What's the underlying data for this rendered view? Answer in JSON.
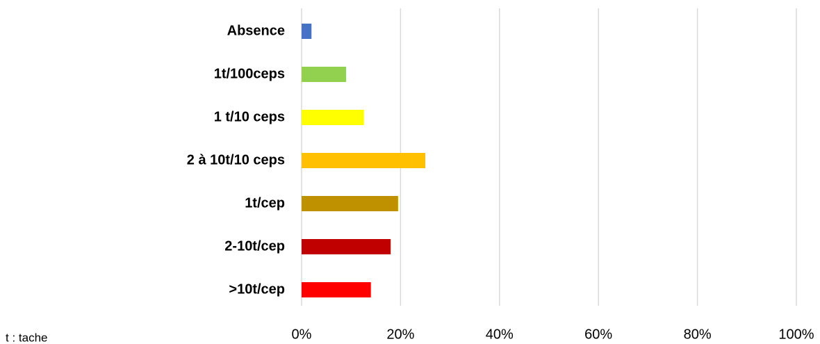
{
  "chart_data": {
    "type": "bar",
    "orientation": "horizontal",
    "categories": [
      "Absence",
      "1t/100ceps",
      "1 t/10 ceps",
      "2 à 10t/10 ceps",
      "1t/cep",
      "2-10t/cep",
      ">10t/cep"
    ],
    "values": [
      2,
      9,
      12.5,
      25,
      19.5,
      18,
      14
    ],
    "colors": [
      "#4472c4",
      "#92d050",
      "#ffff00",
      "#ffc000",
      "#bf9000",
      "#c00000",
      "#ff0000"
    ],
    "xlim": [
      0,
      100
    ],
    "xticks": [
      {
        "value": 0,
        "label": "0%"
      },
      {
        "value": 20,
        "label": "20%"
      },
      {
        "value": 40,
        "label": "40%"
      },
      {
        "value": 60,
        "label": "60%"
      },
      {
        "value": 80,
        "label": "80%"
      },
      {
        "value": 100,
        "label": "100%"
      }
    ],
    "grid": true,
    "annotations": [
      "t : tache"
    ]
  }
}
